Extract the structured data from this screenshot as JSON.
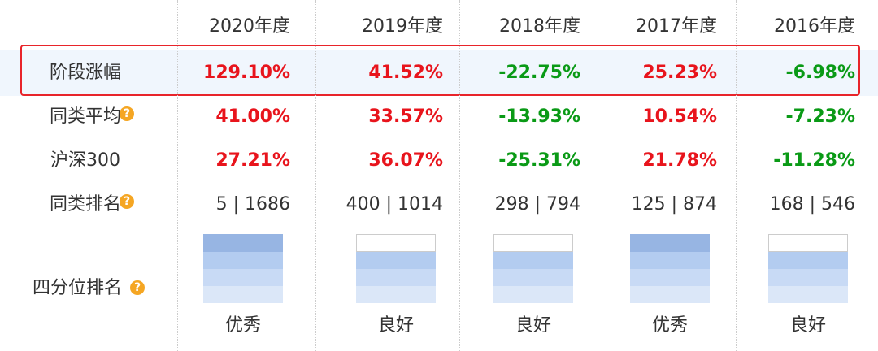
{
  "table": {
    "header": [
      "2020年度",
      "2019年度",
      "2018年度",
      "2017年度",
      "2016年度"
    ],
    "rows": [
      {
        "label": "阶段涨幅",
        "values": [
          "129.10%",
          "41.52%",
          "-22.75%",
          "25.23%",
          "-6.98%"
        ]
      },
      {
        "label": "同类平均",
        "values": [
          "41.00%",
          "33.57%",
          "-13.93%",
          "10.54%",
          "-7.23%"
        ]
      },
      {
        "label": "沪深300",
        "values": [
          "27.21%",
          "36.07%",
          "-25.31%",
          "21.78%",
          "-11.28%"
        ]
      },
      {
        "label": "同类排名",
        "values": [
          "5 | 1686",
          "400 | 1014",
          "298 | 794",
          "125 | 874",
          "168 | 546"
        ]
      }
    ],
    "quartile": {
      "label": "四分位排名",
      "levels": [
        4,
        3,
        3,
        4,
        3
      ],
      "values": [
        "优秀",
        "良好",
        "良好",
        "优秀",
        "良好"
      ]
    }
  }
}
